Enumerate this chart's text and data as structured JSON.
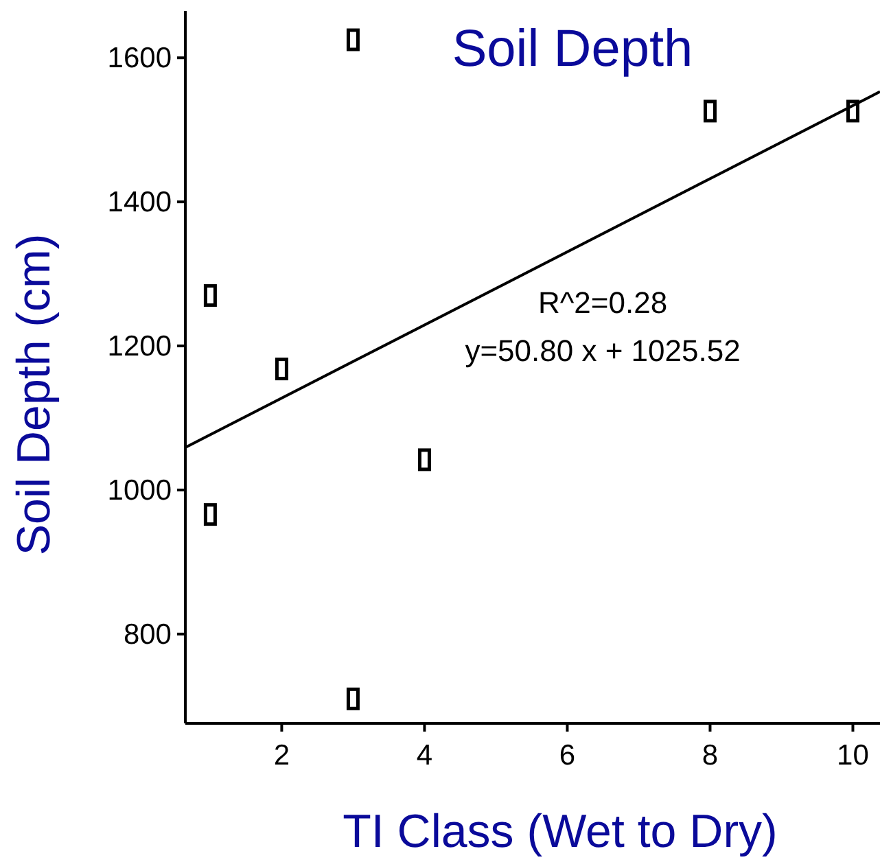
{
  "chart_data": {
    "type": "scatter",
    "title": "Soil Depth",
    "xlabel": "TI Class (Wet to Dry)",
    "ylabel": "Soil Depth (cm)",
    "xlim": [
      0.65,
      10.38
    ],
    "ylim": [
      676,
      1665
    ],
    "xticks": [
      2,
      4,
      6,
      8,
      10
    ],
    "yticks": [
      800,
      1000,
      1200,
      1400,
      1600
    ],
    "grid": false,
    "series": [
      {
        "color": "#000000",
        "marker": "square",
        "x": [
          1,
          1,
          2,
          3,
          3,
          4,
          8,
          10
        ],
        "values": [
          1270,
          966,
          1168,
          1625,
          710,
          1042,
          1526,
          1526
        ]
      },
      {
        "type": "line",
        "color": "#000000",
        "marker": "none",
        "x": [
          0.65,
          10.38
        ],
        "values": [
          1059,
          1553
        ]
      }
    ],
    "annotations": [
      "R^2=0.28",
      "y=50.80 x + 1025.52"
    ]
  }
}
